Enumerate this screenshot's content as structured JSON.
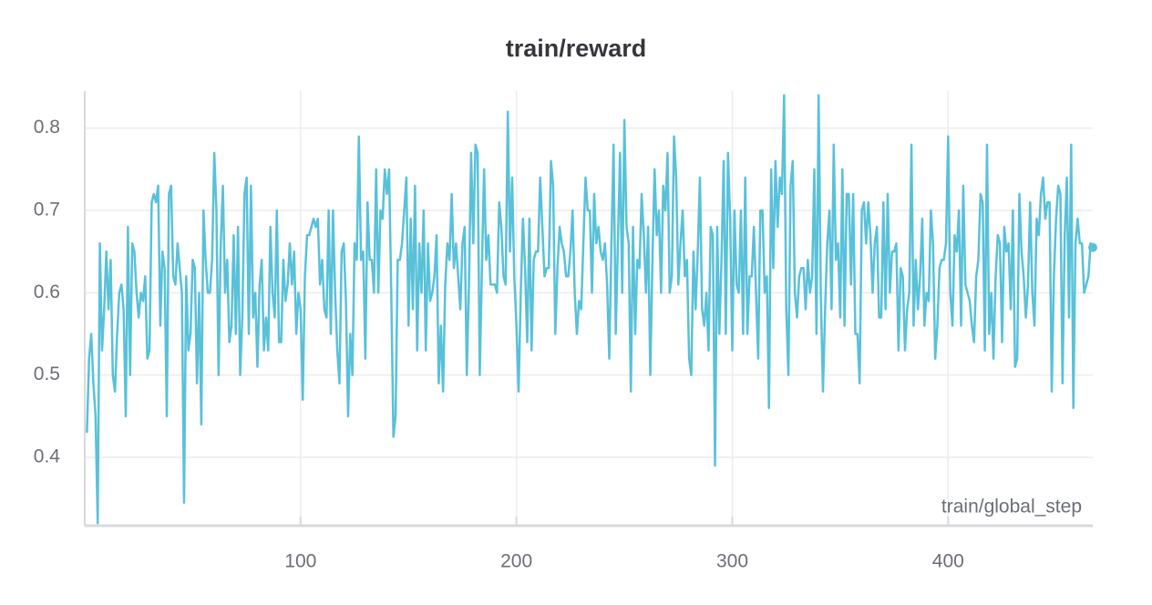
{
  "chart_data": {
    "type": "line",
    "title": "train/reward",
    "x_label": "train/global_step",
    "xlim": [
      0,
      467
    ],
    "ylim": [
      0.317,
      0.845
    ],
    "xticks": [
      100,
      200,
      300,
      400
    ],
    "yticks": [
      0.4,
      0.5,
      0.6,
      0.7,
      0.8
    ],
    "grid": true,
    "x": [
      1,
      2,
      3,
      4,
      5,
      6,
      7,
      8,
      9,
      10,
      11,
      12,
      13,
      14,
      15,
      16,
      17,
      18,
      19,
      20,
      21,
      22,
      23,
      24,
      25,
      26,
      27,
      28,
      29,
      30,
      31,
      32,
      33,
      34,
      35,
      36,
      37,
      38,
      39,
      40,
      41,
      42,
      43,
      44,
      45,
      46,
      47,
      48,
      49,
      50,
      51,
      52,
      53,
      54,
      55,
      56,
      57,
      58,
      59,
      60,
      61,
      62,
      63,
      64,
      65,
      66,
      67,
      68,
      69,
      70,
      71,
      72,
      73,
      74,
      75,
      76,
      77,
      78,
      79,
      80,
      81,
      82,
      83,
      84,
      85,
      86,
      87,
      88,
      89,
      90,
      91,
      92,
      93,
      94,
      95,
      96,
      97,
      98,
      99,
      100,
      101,
      102,
      103,
      104,
      105,
      106,
      107,
      108,
      109,
      110,
      111,
      112,
      113,
      114,
      115,
      116,
      117,
      118,
      119,
      120,
      121,
      122,
      123,
      124,
      125,
      126,
      127,
      128,
      129,
      130,
      131,
      132,
      133,
      134,
      135,
      136,
      137,
      138,
      139,
      140,
      141,
      142,
      143,
      144,
      145,
      146,
      147,
      148,
      149,
      150,
      151,
      152,
      153,
      154,
      155,
      156,
      157,
      158,
      159,
      160,
      161,
      162,
      163,
      164,
      165,
      166,
      167,
      168,
      169,
      170,
      171,
      172,
      173,
      174,
      175,
      176,
      177,
      178,
      179,
      180,
      181,
      182,
      183,
      184,
      185,
      186,
      187,
      188,
      189,
      190,
      191,
      192,
      193,
      194,
      195,
      196,
      197,
      198,
      199,
      200,
      201,
      202,
      203,
      204,
      205,
      206,
      207,
      208,
      209,
      210,
      211,
      212,
      213,
      214,
      215,
      216,
      217,
      218,
      219,
      220,
      221,
      222,
      223,
      224,
      225,
      226,
      227,
      228,
      229,
      230,
      231,
      232,
      233,
      234,
      235,
      236,
      237,
      238,
      239,
      240,
      241,
      242,
      243,
      244,
      245,
      246,
      247,
      248,
      249,
      250,
      251,
      252,
      253,
      254,
      255,
      256,
      257,
      258,
      259,
      260,
      261,
      262,
      263,
      264,
      265,
      266,
      267,
      268,
      269,
      270,
      271,
      272,
      273,
      274,
      275,
      276,
      277,
      278,
      279,
      280,
      281,
      282,
      283,
      284,
      285,
      286,
      287,
      288,
      289,
      290,
      291,
      292,
      293,
      294,
      295,
      296,
      297,
      298,
      299,
      300,
      301,
      302,
      303,
      304,
      305,
      306,
      307,
      308,
      309,
      310,
      311,
      312,
      313,
      314,
      315,
      316,
      317,
      318,
      319,
      320,
      321,
      322,
      323,
      324,
      325,
      326,
      327,
      328,
      329,
      330,
      331,
      332,
      333,
      334,
      335,
      336,
      337,
      338,
      339,
      340,
      341,
      342,
      343,
      344,
      345,
      346,
      347,
      348,
      349,
      350,
      351,
      352,
      353,
      354,
      355,
      356,
      357,
      358,
      359,
      360,
      361,
      362,
      363,
      364,
      365,
      366,
      367,
      368,
      369,
      370,
      371,
      372,
      373,
      374,
      375,
      376,
      377,
      378,
      379,
      380,
      381,
      382,
      383,
      384,
      385,
      386,
      387,
      388,
      389,
      390,
      391,
      392,
      393,
      394,
      395,
      396,
      397,
      398,
      399,
      400,
      401,
      402,
      403,
      404,
      405,
      406,
      407,
      408,
      409,
      410,
      411,
      412,
      413,
      414,
      415,
      416,
      417,
      418,
      419,
      420,
      421,
      422,
      423,
      424,
      425,
      426,
      427,
      428,
      429,
      430,
      431,
      432,
      433,
      434,
      435,
      436,
      437,
      438,
      439,
      440,
      441,
      442,
      443,
      444,
      445,
      446,
      447,
      448,
      449,
      450,
      451,
      452,
      453,
      454,
      455,
      456,
      457,
      458,
      459,
      460,
      461,
      462,
      463,
      464,
      465,
      466,
      467
    ],
    "series": [
      {
        "color": "#58c1d9",
        "values": [
          0.43,
          0.52,
          0.55,
          0.49,
          0.45,
          0.32,
          0.66,
          0.53,
          0.58,
          0.65,
          0.58,
          0.64,
          0.5,
          0.48,
          0.55,
          0.6,
          0.61,
          0.58,
          0.45,
          0.68,
          0.5,
          0.66,
          0.65,
          0.6,
          0.57,
          0.6,
          0.59,
          0.62,
          0.52,
          0.53,
          0.71,
          0.72,
          0.71,
          0.73,
          0.56,
          0.65,
          0.63,
          0.45,
          0.72,
          0.73,
          0.62,
          0.61,
          0.66,
          0.63,
          0.6,
          0.345,
          0.62,
          0.53,
          0.55,
          0.64,
          0.63,
          0.49,
          0.6,
          0.44,
          0.7,
          0.64,
          0.6,
          0.6,
          0.64,
          0.77,
          0.7,
          0.5,
          0.66,
          0.73,
          0.6,
          0.64,
          0.54,
          0.56,
          0.67,
          0.55,
          0.68,
          0.5,
          0.57,
          0.72,
          0.74,
          0.55,
          0.73,
          0.57,
          0.6,
          0.51,
          0.61,
          0.64,
          0.53,
          0.57,
          0.53,
          0.68,
          0.6,
          0.57,
          0.7,
          0.54,
          0.54,
          0.64,
          0.59,
          0.61,
          0.66,
          0.61,
          0.65,
          0.55,
          0.6,
          0.58,
          0.47,
          0.62,
          0.67,
          0.67,
          0.68,
          0.69,
          0.68,
          0.69,
          0.61,
          0.64,
          0.58,
          0.57,
          0.7,
          0.55,
          0.7,
          0.6,
          0.53,
          0.49,
          0.65,
          0.66,
          0.59,
          0.45,
          0.55,
          0.5,
          0.66,
          0.64,
          0.79,
          0.64,
          0.65,
          0.52,
          0.71,
          0.64,
          0.64,
          0.6,
          0.75,
          0.6,
          0.7,
          0.69,
          0.75,
          0.72,
          0.75,
          0.6,
          0.425,
          0.45,
          0.64,
          0.64,
          0.66,
          0.7,
          0.74,
          0.56,
          0.69,
          0.58,
          0.73,
          0.53,
          0.66,
          0.6,
          0.7,
          0.53,
          0.66,
          0.59,
          0.6,
          0.62,
          0.67,
          0.49,
          0.56,
          0.48,
          0.61,
          0.66,
          0.64,
          0.72,
          0.63,
          0.66,
          0.62,
          0.58,
          0.66,
          0.68,
          0.5,
          0.61,
          0.77,
          0.66,
          0.78,
          0.77,
          0.5,
          0.63,
          0.75,
          0.64,
          0.67,
          0.61,
          0.61,
          0.61,
          0.6,
          0.71,
          0.68,
          0.62,
          0.61,
          0.82,
          0.65,
          0.74,
          0.62,
          0.56,
          0.48,
          0.6,
          0.69,
          0.63,
          0.54,
          0.69,
          0.53,
          0.64,
          0.65,
          0.65,
          0.74,
          0.68,
          0.62,
          0.63,
          0.63,
          0.76,
          0.73,
          0.55,
          0.63,
          0.68,
          0.66,
          0.65,
          0.62,
          0.62,
          0.65,
          0.7,
          0.6,
          0.55,
          0.59,
          0.58,
          0.66,
          0.74,
          0.7,
          0.7,
          0.6,
          0.72,
          0.66,
          0.68,
          0.65,
          0.64,
          0.66,
          0.61,
          0.52,
          0.66,
          0.78,
          0.55,
          0.66,
          0.77,
          0.6,
          0.81,
          0.68,
          0.66,
          0.48,
          0.68,
          0.55,
          0.64,
          0.63,
          0.72,
          0.67,
          0.6,
          0.68,
          0.5,
          0.64,
          0.75,
          0.67,
          0.7,
          0.6,
          0.73,
          0.7,
          0.77,
          0.6,
          0.62,
          0.79,
          0.74,
          0.61,
          0.66,
          0.7,
          0.62,
          0.64,
          0.52,
          0.5,
          0.65,
          0.58,
          0.65,
          0.74,
          0.58,
          0.56,
          0.6,
          0.53,
          0.68,
          0.67,
          0.39,
          0.68,
          0.55,
          0.64,
          0.76,
          0.55,
          0.77,
          0.69,
          0.53,
          0.7,
          0.61,
          0.6,
          0.7,
          0.55,
          0.74,
          0.55,
          0.62,
          0.62,
          0.68,
          0.6,
          0.52,
          0.7,
          0.7,
          0.6,
          0.62,
          0.46,
          0.75,
          0.63,
          0.76,
          0.68,
          0.74,
          0.72,
          0.84,
          0.58,
          0.5,
          0.73,
          0.76,
          0.6,
          0.57,
          0.62,
          0.63,
          0.63,
          0.58,
          0.64,
          0.6,
          0.62,
          0.75,
          0.55,
          0.84,
          0.6,
          0.48,
          0.58,
          0.66,
          0.7,
          0.58,
          0.78,
          0.64,
          0.66,
          0.57,
          0.75,
          0.56,
          0.72,
          0.72,
          0.61,
          0.72,
          0.55,
          0.55,
          0.49,
          0.7,
          0.71,
          0.66,
          0.71,
          0.67,
          0.6,
          0.66,
          0.68,
          0.57,
          0.57,
          0.71,
          0.58,
          0.72,
          0.6,
          0.65,
          0.65,
          0.66,
          0.53,
          0.63,
          0.62,
          0.53,
          0.58,
          0.6,
          0.78,
          0.56,
          0.64,
          0.58,
          0.62,
          0.69,
          0.56,
          0.6,
          0.59,
          0.7,
          0.66,
          0.52,
          0.56,
          0.63,
          0.64,
          0.64,
          0.66,
          0.79,
          0.6,
          0.56,
          0.67,
          0.65,
          0.7,
          0.56,
          0.73,
          0.61,
          0.6,
          0.59,
          0.56,
          0.54,
          0.62,
          0.64,
          0.72,
          0.71,
          0.53,
          0.78,
          0.55,
          0.6,
          0.52,
          0.62,
          0.67,
          0.66,
          0.54,
          0.68,
          0.65,
          0.66,
          0.58,
          0.7,
          0.51,
          0.52,
          0.72,
          0.65,
          0.62,
          0.57,
          0.61,
          0.71,
          0.6,
          0.56,
          0.69,
          0.67,
          0.72,
          0.74,
          0.69,
          0.71,
          0.71,
          0.48,
          0.62,
          0.69,
          0.73,
          0.72,
          0.49,
          0.67,
          0.74,
          0.57,
          0.78,
          0.46,
          0.66,
          0.69,
          0.66,
          0.66,
          0.6,
          0.61,
          0.62,
          0.66,
          0.655
        ]
      }
    ]
  }
}
